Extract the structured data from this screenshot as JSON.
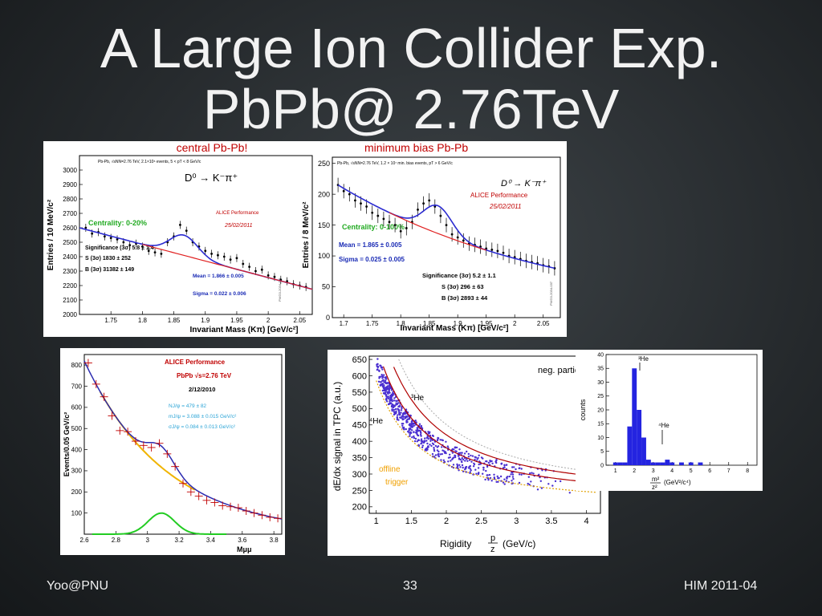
{
  "slide": {
    "title_line1": "A Large Ion Collider Exp.",
    "title_line2": "PbPb@ 2.76TeV",
    "footer_left": "Yoo@PNU",
    "footer_center": "33",
    "footer_right": "HIM 2011-04"
  },
  "panel_d0": {
    "left": {
      "caption": "central Pb-Pb!",
      "ylabel": "Entries / 10 MeV/c²",
      "xlabel": "Invariant Mass (Kπ) [GeV/c²]",
      "info": "Pb-Pb, √sNN=2.76 TeV, 2.1×10⁶ events, 5 < pT < 8 GeV/c",
      "decay": "D⁰ → K⁻π⁺",
      "performance": "ALICE Performance",
      "date": "25/02/2011",
      "centrality": "Centrality: 0-20%",
      "significance": "Significance (3σ) 5.8 ± 1.4",
      "signal": "S (3σ) 1830 ± 252",
      "background": "B (3σ) 31382 ± 149",
      "mean": "Mean = 1.866 ± 0.005",
      "sigma": "Sigma = 0.022 ± 0.006",
      "id": "PWG3-2034-031",
      "yticks": [
        "3000",
        "2900",
        "2800",
        "2700",
        "2600",
        "2500",
        "2400",
        "2300",
        "2200",
        "2100",
        "2000"
      ],
      "xticks": [
        "1.75",
        "1.8",
        "1.85",
        "1.9",
        "1.95",
        "2",
        "2.05"
      ]
    },
    "right": {
      "caption": "minimum bias Pb-Pb",
      "ylabel": "Entries / 8 MeV/c²",
      "xlabel": "Invariant Mass (Kπ) [GeV/c²]",
      "info": "Pb-Pb, √sNN=2.76 TeV, 1.2 × 10⁷ min. bias events, pT > 6 GeV/c",
      "decay": "D⁰ → K⁻π⁺",
      "performance": "ALICE Performance",
      "date": "25/02/2011",
      "centrality": "Centrality: 0-100%",
      "mean": "Mean = 1.865 ± 0.005",
      "sigma": "Sigma = 0.025 ± 0.005",
      "significance": "Significance (3σ) 5.2 ± 1.1",
      "signal": "S (3σ) 296 ± 63",
      "background": "B (3σ) 2893 ± 44",
      "id": "PWG3-2034-037",
      "yticks": [
        "250",
        "200",
        "150",
        "100",
        "50",
        "0"
      ],
      "xticks": [
        "1.7",
        "1.75",
        "1.8",
        "1.85",
        "1.9",
        "1.95",
        "2",
        "2.05"
      ]
    }
  },
  "panel_jpsi": {
    "ylabel": "Events/0.05 GeV/c²",
    "xlabel": "Mμμ",
    "performance": "ALICE Performance",
    "system": "PbPb √s=2.76 TeV",
    "date": "2/12/2010",
    "n": "NJ/ψ = 479 ± 82",
    "m": "mJ/ψ = 3.088 ± 0.015 GeV/c²",
    "s": "σJ/ψ = 0.084 ± 0.013 GeV/c²",
    "yticks": [
      "800",
      "700",
      "600",
      "500",
      "400",
      "300",
      "200",
      "100"
    ],
    "xticks": [
      "2.6",
      "2.8",
      "3",
      "3.2",
      "3.4",
      "3.6",
      "3.8"
    ]
  },
  "panel_tpc": {
    "ylabel": "dE/dx signal in TPC (a.u.)",
    "xlabel_prefix": "Rigidity",
    "xlabel_frac_top": "p",
    "xlabel_frac_bottom": "z",
    "xlabel_unit": "(GeV/c)",
    "legend": "neg. particl",
    "he3_label": "³He",
    "he4_label": "⁴He",
    "offline": "offline",
    "trigger": "trigger",
    "yticks": [
      "650",
      "600",
      "550",
      "500",
      "450",
      "400",
      "350",
      "300",
      "250",
      "200"
    ],
    "xticks": [
      "1",
      "1.5",
      "2",
      "2.5",
      "3",
      "3.5",
      "4"
    ]
  },
  "panel_hist": {
    "ylabel": "counts",
    "xlabel_frac_top": "m²",
    "xlabel_frac_bottom": "z²",
    "xlabel_unit": "(GeV²/c⁴)",
    "he3_label": "³He",
    "he4_label": "⁴He",
    "yticks": [
      "40",
      "35",
      "30",
      "25",
      "20",
      "15",
      "10",
      "5",
      "0"
    ],
    "xticks": [
      "1",
      "2",
      "3",
      "4",
      "5",
      "6",
      "7",
      "8"
    ]
  },
  "chart_data": [
    {
      "type": "scatter",
      "title": "central Pb-Pb!",
      "xlabel": "Invariant Mass (Kπ) [GeV/c²]",
      "ylabel": "Entries / 10 MeV/c²",
      "xlim": [
        1.7,
        2.07
      ],
      "ylim": [
        2000,
        3100
      ],
      "x": [
        1.71,
        1.72,
        1.73,
        1.74,
        1.75,
        1.76,
        1.77,
        1.78,
        1.79,
        1.8,
        1.81,
        1.82,
        1.83,
        1.84,
        1.85,
        1.86,
        1.87,
        1.88,
        1.89,
        1.9,
        1.91,
        1.92,
        1.93,
        1.94,
        1.95,
        1.96,
        1.97,
        1.98,
        1.99,
        2.0,
        2.01,
        2.02,
        2.03,
        2.04,
        2.05,
        2.06
      ],
      "y": [
        2600,
        2560,
        2570,
        2540,
        2530,
        2520,
        2500,
        2480,
        2490,
        2470,
        2440,
        2430,
        2420,
        2500,
        2540,
        2620,
        2580,
        2500,
        2470,
        2440,
        2420,
        2410,
        2400,
        2380,
        2390,
        2350,
        2330,
        2300,
        2310,
        2270,
        2260,
        2240,
        2230,
        2210,
        2200,
        2190
      ],
      "series": [
        {
          "name": "fit",
          "shape": "gaussian + exponential",
          "mean": 1.866,
          "sigma": 0.022
        },
        {
          "name": "background",
          "shape": "exponential"
        }
      ]
    },
    {
      "type": "scatter",
      "title": "minimum bias Pb-Pb",
      "xlabel": "Invariant Mass (Kπ) [GeV/c²]",
      "ylabel": "Entries / 8 MeV/c²",
      "xlim": [
        1.68,
        2.08
      ],
      "ylim": [
        0,
        260
      ],
      "x": [
        1.69,
        1.7,
        1.71,
        1.72,
        1.73,
        1.74,
        1.75,
        1.76,
        1.77,
        1.78,
        1.79,
        1.8,
        1.81,
        1.82,
        1.83,
        1.84,
        1.85,
        1.86,
        1.87,
        1.88,
        1.89,
        1.9,
        1.91,
        1.92,
        1.93,
        1.94,
        1.95,
        1.96,
        1.97,
        1.98,
        1.99,
        2.0,
        2.01,
        2.02,
        2.03,
        2.04,
        2.05,
        2.06,
        2.07
      ],
      "y": [
        215,
        205,
        200,
        190,
        185,
        180,
        170,
        165,
        160,
        155,
        150,
        140,
        145,
        155,
        175,
        185,
        190,
        180,
        165,
        150,
        135,
        130,
        125,
        120,
        118,
        115,
        112,
        110,
        108,
        105,
        100,
        98,
        95,
        92,
        90,
        88,
        85,
        83,
        80
      ],
      "series": [
        {
          "name": "fit",
          "shape": "gaussian + exponential",
          "mean": 1.865,
          "sigma": 0.025
        },
        {
          "name": "background",
          "shape": "exponential"
        }
      ]
    },
    {
      "type": "scatter",
      "xlabel": "Mμμ",
      "ylabel": "Events/0.05 GeV/c²",
      "xlim": [
        2.6,
        3.85
      ],
      "ylim": [
        0,
        850
      ],
      "x": [
        2.625,
        2.675,
        2.725,
        2.775,
        2.825,
        2.875,
        2.925,
        2.975,
        3.025,
        3.075,
        3.125,
        3.175,
        3.225,
        3.275,
        3.325,
        3.375,
        3.425,
        3.475,
        3.525,
        3.575,
        3.625,
        3.675,
        3.725,
        3.775,
        3.825
      ],
      "y": [
        810,
        710,
        650,
        560,
        490,
        485,
        440,
        420,
        410,
        430,
        380,
        320,
        240,
        200,
        180,
        160,
        150,
        135,
        130,
        125,
        110,
        100,
        90,
        80,
        75
      ],
      "series": [
        {
          "name": "total fit"
        },
        {
          "name": "background"
        },
        {
          "name": "J/ψ signal",
          "mean": 3.088,
          "sigma": 0.084
        }
      ]
    },
    {
      "type": "scatter",
      "xlabel": "Rigidity p/z (GeV/c)",
      "ylabel": "dE/dx signal in TPC (a.u.)",
      "xlim": [
        0.9,
        4.2
      ],
      "ylim": [
        180,
        660
      ],
      "series": [
        {
          "name": "neg. particl"
        },
        {
          "name": "³He"
        },
        {
          "name": "⁴He"
        },
        {
          "name": "offline trigger"
        }
      ]
    },
    {
      "type": "bar",
      "xlabel": "m²/z² (GeV²/c⁴)",
      "ylabel": "counts",
      "xlim": [
        0.5,
        8.5
      ],
      "ylim": [
        0,
        40
      ],
      "categories": [
        "1.0",
        "1.25",
        "1.5",
        "1.75",
        "2.0",
        "2.25",
        "2.5",
        "2.75",
        "3.0",
        "3.25",
        "3.5",
        "3.75",
        "4.0",
        "4.25",
        "4.5",
        "4.75",
        "5.0",
        "5.25",
        "5.5",
        "5.75",
        "6.0",
        "6.25"
      ],
      "values": [
        1,
        1,
        1,
        14,
        35,
        20,
        10,
        2,
        1,
        1,
        1,
        2,
        1,
        0,
        1,
        0,
        1,
        0,
        1,
        0,
        0,
        0
      ]
    }
  ]
}
